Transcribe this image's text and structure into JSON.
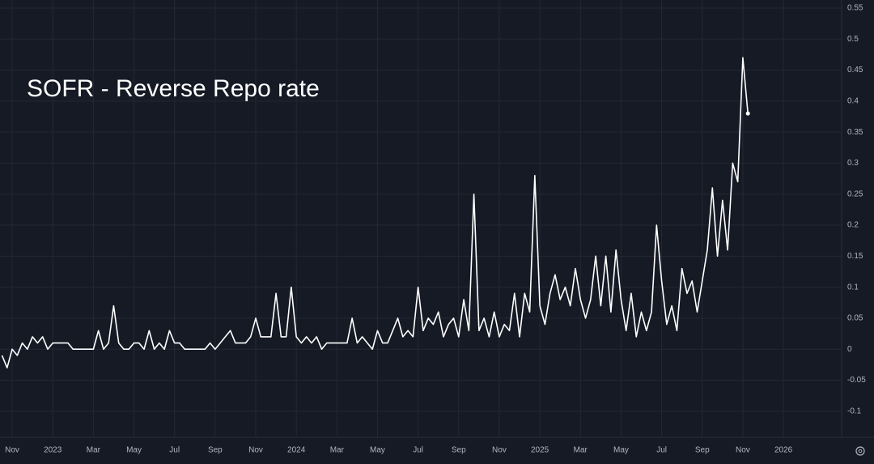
{
  "chart_data": {
    "type": "line",
    "title": "SOFR - Reverse Repo rate",
    "color": "#ffffff",
    "grid": true,
    "y_axis_side": "right",
    "categories": [
      null,
      null,
      "Nov",
      null,
      null,
      null,
      null,
      null,
      null,
      null,
      "2023",
      null,
      null,
      null,
      null,
      null,
      null,
      null,
      "Mar",
      null,
      null,
      null,
      null,
      null,
      null,
      null,
      "May",
      null,
      null,
      null,
      null,
      null,
      null,
      null,
      "Jul",
      null,
      null,
      null,
      null,
      null,
      null,
      null,
      "Sep",
      null,
      null,
      null,
      null,
      null,
      null,
      null,
      "Nov",
      null,
      null,
      null,
      null,
      null,
      null,
      null,
      "2024",
      null,
      null,
      null,
      null,
      null,
      null,
      null,
      "Mar",
      null,
      null,
      null,
      null,
      null,
      null,
      null,
      "May",
      null,
      null,
      null,
      null,
      null,
      null,
      null,
      "Jul",
      null,
      null,
      null,
      null,
      null,
      null,
      null,
      "Sep",
      null,
      null,
      null,
      null,
      null,
      null,
      null,
      "Nov",
      null,
      null,
      null,
      null,
      null,
      null,
      null,
      "2025",
      null,
      null,
      null,
      null,
      null,
      null,
      null,
      "Mar",
      null,
      null,
      null,
      null,
      null,
      null,
      null,
      "May",
      null,
      null,
      null,
      null,
      null,
      null,
      null,
      "Jul",
      null,
      null,
      null,
      null,
      null,
      null,
      null,
      "Sep",
      null,
      null,
      null,
      null,
      null,
      null,
      null,
      "Nov",
      null,
      null,
      null,
      null,
      null,
      null,
      null,
      "2026",
      null,
      null,
      null,
      null,
      null,
      null,
      null,
      null,
      null,
      null,
      null
    ],
    "values": [
      -0.01,
      -0.03,
      0.0,
      -0.01,
      0.01,
      0.0,
      0.02,
      0.01,
      0.02,
      0.0,
      0.01,
      0.01,
      0.01,
      0.01,
      0.0,
      0.0,
      0.0,
      0.0,
      0.0,
      0.03,
      0.0,
      0.01,
      0.07,
      0.01,
      0.0,
      0.0,
      0.01,
      0.01,
      0.0,
      0.03,
      0.0,
      0.01,
      0.0,
      0.03,
      0.01,
      0.01,
      0.0,
      0.0,
      0.0,
      0.0,
      0.0,
      0.01,
      0.0,
      0.01,
      0.02,
      0.03,
      0.01,
      0.01,
      0.01,
      0.02,
      0.05,
      0.02,
      0.02,
      0.02,
      0.09,
      0.02,
      0.02,
      0.1,
      0.02,
      0.01,
      0.02,
      0.01,
      0.02,
      0.0,
      0.01,
      0.01,
      0.01,
      0.01,
      0.01,
      0.05,
      0.01,
      0.02,
      0.01,
      0.0,
      0.03,
      0.01,
      0.01,
      0.03,
      0.05,
      0.02,
      0.03,
      0.02,
      0.1,
      0.03,
      0.05,
      0.04,
      0.06,
      0.02,
      0.04,
      0.05,
      0.02,
      0.08,
      0.03,
      0.25,
      0.03,
      0.05,
      0.02,
      0.06,
      0.02,
      0.04,
      0.03,
      0.09,
      0.02,
      0.09,
      0.06,
      0.28,
      0.07,
      0.04,
      0.09,
      0.12,
      0.08,
      0.1,
      0.07,
      0.13,
      0.08,
      0.05,
      0.08,
      0.15,
      0.07,
      0.15,
      0.06,
      0.16,
      0.08,
      0.03,
      0.09,
      0.02,
      0.06,
      0.03,
      0.06,
      0.2,
      0.11,
      0.04,
      0.07,
      0.03,
      0.13,
      0.09,
      0.11,
      0.06,
      0.11,
      0.16,
      0.26,
      0.15,
      0.24,
      0.16,
      0.3,
      0.27,
      0.47,
      0.38,
      null,
      null,
      null,
      null,
      null,
      null,
      null,
      null,
      null,
      null,
      null,
      null,
      null,
      null,
      null,
      null,
      null,
      null
    ],
    "ylim": [
      -0.142,
      0.563
    ],
    "yticks": [
      -0.1,
      -0.05,
      0,
      0.05,
      0.1,
      0.15,
      0.2,
      0.25,
      0.3,
      0.35,
      0.4,
      0.45,
      0.5,
      0.55
    ]
  }
}
